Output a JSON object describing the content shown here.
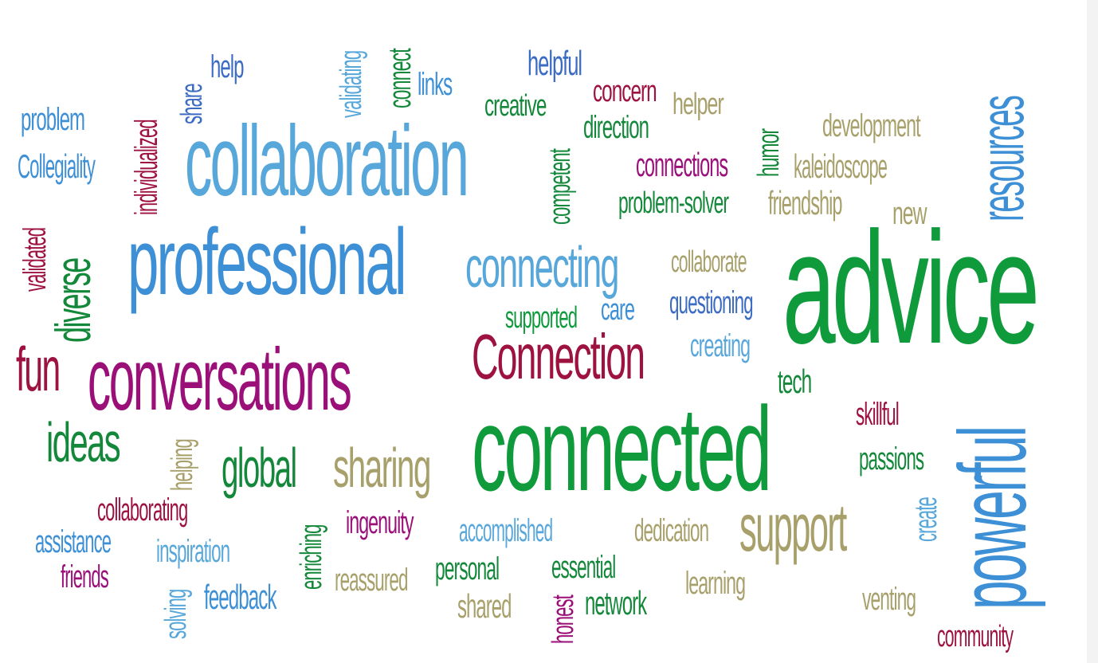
{
  "words": {
    "advice": "advice",
    "connected": "connected",
    "collaboration": "collaboration",
    "professional": "professional",
    "conversations": "conversations",
    "powerful": "powerful",
    "resources": "resources",
    "connecting": "connecting",
    "Connection": "Connection",
    "support": "support",
    "sharing": "sharing",
    "global": "global",
    "ideas": "ideas",
    "diverse": "diverse",
    "fun": "fun",
    "problem": "problem",
    "Collegiality": "Collegiality",
    "individualized": "individualized",
    "share": "share",
    "help": "help",
    "validating": "validating",
    "connect": "connect",
    "links": "links",
    "helpful": "helpful",
    "creative": "creative",
    "concern": "concern",
    "helper": "helper",
    "direction": "direction",
    "competent": "competent",
    "connections": "connections",
    "humor": "humor",
    "development": "development",
    "kaleidoscope": "kaleidoscope",
    "problem-solver": "problem-solver",
    "friendship": "friendship",
    "new": "new",
    "validated": "validated",
    "collaborate": "collaborate",
    "supported": "supported",
    "care": "care",
    "questioning": "questioning",
    "creating": "creating",
    "tech": "tech",
    "skillful": "skillful",
    "passions": "passions",
    "create": "create",
    "helping": "helping",
    "collaborating": "collaborating",
    "assistance": "assistance",
    "friends": "friends",
    "inspiration": "inspiration",
    "solving": "solving",
    "feedback": "feedback",
    "enriching": "enriching",
    "ingenuity": "ingenuity",
    "accomplished": "accomplished",
    "dedication": "dedication",
    "reassured": "reassured",
    "personal": "personal",
    "shared": "shared",
    "essential": "essential",
    "honest": "honest",
    "network": "network",
    "learning": "learning",
    "venting": "venting",
    "community": "community"
  },
  "colors": {
    "blue": "#3d8fd6",
    "light_blue": "#58a7da",
    "dark_blue": "#3c6bc4",
    "green": "#0f9a3c",
    "dark_green": "#14883a",
    "magenta": "#9a0f78",
    "crimson": "#9e1240",
    "tan": "#a8a06b"
  }
}
